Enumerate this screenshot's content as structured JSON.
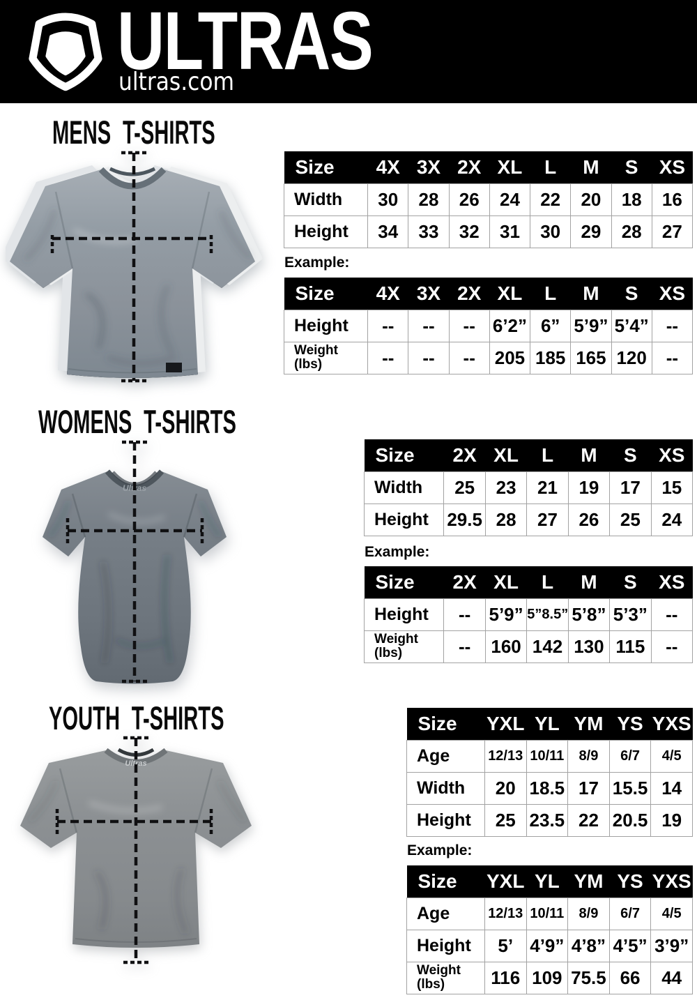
{
  "header": {
    "brand": "ULTRAS",
    "domain": "ultras.com",
    "background": "#000000",
    "text_color": "#ffffff",
    "logo_icon": "pentagon-shield-icon"
  },
  "sections": [
    {
      "id": "mens",
      "title": "MENS T-SHIRTS",
      "example_label": "Example:",
      "shirt_color": "#8b929a",
      "size_table": {
        "header": [
          "Size",
          "4X",
          "3X",
          "2X",
          "XL",
          "L",
          "M",
          "S",
          "XS"
        ],
        "rows": [
          {
            "label": "Width",
            "values": [
              "30",
              "28",
              "26",
              "24",
              "22",
              "20",
              "18",
              "16"
            ]
          },
          {
            "label": "Height",
            "values": [
              "34",
              "33",
              "32",
              "31",
              "30",
              "29",
              "28",
              "27"
            ]
          }
        ]
      },
      "example_table": {
        "header": [
          "Size",
          "4X",
          "3X",
          "2X",
          "XL",
          "L",
          "M",
          "S",
          "XS"
        ],
        "rows": [
          {
            "label": "Height",
            "values": [
              "--",
              "--",
              "--",
              "6’2”",
              "6”",
              "5’9”",
              "5’4”",
              "--"
            ]
          },
          {
            "label": "Weight\n(lbs)",
            "values": [
              "--",
              "--",
              "--",
              "205",
              "185",
              "165",
              "120",
              "--"
            ]
          }
        ]
      }
    },
    {
      "id": "womens",
      "title": "WOMENS T-SHIRTS",
      "example_label": "Example:",
      "shirt_color": "#79818a",
      "size_table": {
        "header": [
          "Size",
          "2X",
          "XL",
          "L",
          "M",
          "S",
          "XS"
        ],
        "rows": [
          {
            "label": "Width",
            "values": [
              "25",
              "23",
              "21",
              "19",
              "17",
              "15"
            ]
          },
          {
            "label": "Height",
            "values": [
              "29.5",
              "28",
              "27",
              "26",
              "25",
              "24"
            ]
          }
        ]
      },
      "example_table": {
        "header": [
          "Size",
          "2X",
          "XL",
          "L",
          "M",
          "S",
          "XS"
        ],
        "rows": [
          {
            "label": "Height",
            "values": [
              "--",
              "5’9”",
              "5”8.5”",
              "5’8”",
              "5’3”",
              "--"
            ]
          },
          {
            "label": "Weight\n(lbs)",
            "values": [
              "--",
              "160",
              "142",
              "130",
              "115",
              "--"
            ]
          }
        ]
      }
    },
    {
      "id": "youth",
      "title": "YOUTH T-SHIRTS",
      "example_label": "Example:",
      "shirt_color": "#878c8f",
      "size_table": {
        "header": [
          "Size",
          "YXL",
          "YL",
          "YM",
          "YS",
          "YXS"
        ],
        "rows": [
          {
            "label": "Age",
            "small_values": true,
            "values": [
              "12/13",
              "10/11",
              "8/9",
              "6/7",
              "4/5"
            ]
          },
          {
            "label": "Width",
            "values": [
              "20",
              "18.5",
              "17",
              "15.5",
              "14"
            ]
          },
          {
            "label": "Height",
            "values": [
              "25",
              "23.5",
              "22",
              "20.5",
              "19"
            ]
          }
        ]
      },
      "example_table": {
        "header": [
          "Size",
          "YXL",
          "YL",
          "YM",
          "YS",
          "YXS"
        ],
        "rows": [
          {
            "label": "Age",
            "small_values": true,
            "values": [
              "12/13",
              "10/11",
              "8/9",
              "6/7",
              "4/5"
            ]
          },
          {
            "label": "Height",
            "values": [
              "5’",
              "4’9”",
              "4’8”",
              "4’5”",
              "3’9”"
            ]
          },
          {
            "label": "Weight\n(lbs)",
            "values": [
              "116",
              "109",
              "75.5",
              "66",
              "44"
            ]
          }
        ]
      }
    }
  ]
}
